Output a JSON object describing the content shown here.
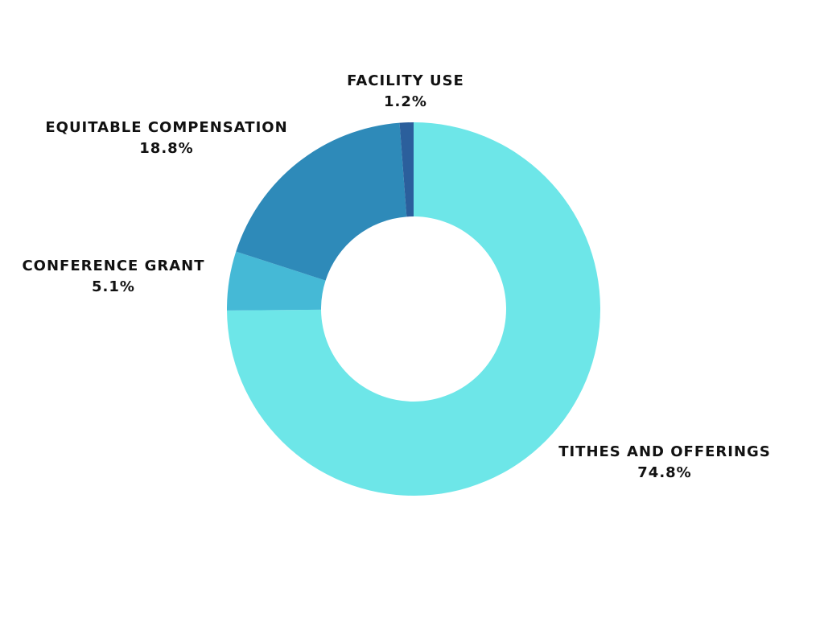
{
  "chart_data": {
    "type": "pie",
    "donut": true,
    "categories": [
      "TITHES AND OFFERINGS",
      "CONFERENCE GRANT",
      "EQUITABLE COMPENSATION",
      "FACILITY USE"
    ],
    "values": [
      74.8,
      5.1,
      18.8,
      1.2
    ],
    "value_labels": [
      "74.8%",
      "5.1%",
      "18.8%",
      "1.2%"
    ],
    "colors": [
      "#6de6e8",
      "#45b9d6",
      "#2e8ab9",
      "#2b5f9c"
    ]
  }
}
